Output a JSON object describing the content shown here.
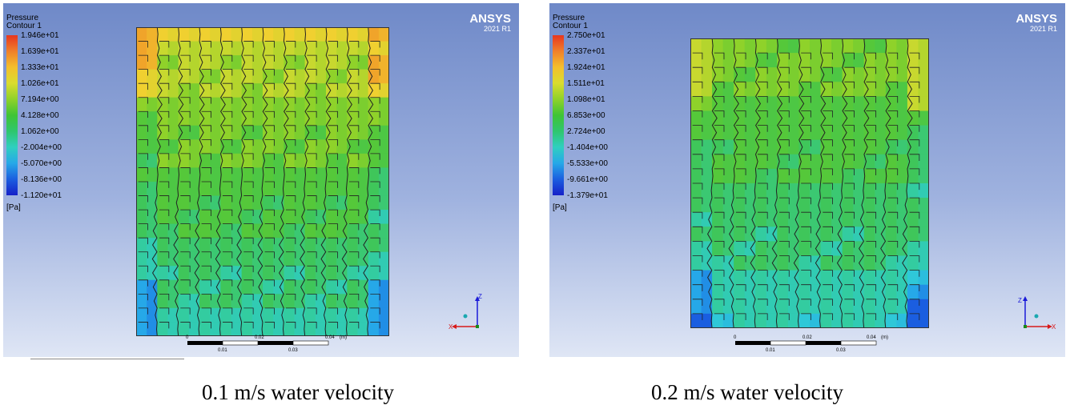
{
  "panels": [
    {
      "legend": {
        "title_line1": "Pressure",
        "title_line2": "Contour 1",
        "ticks": [
          "1.946e+01",
          "1.639e+01",
          "1.333e+01",
          "1.026e+01",
          "7.194e+00",
          "4.128e+00",
          "1.062e+00",
          "-2.004e+00",
          "-5.070e+00",
          "-8.136e+00",
          "-1.120e+01"
        ],
        "unit": "[Pa]"
      },
      "brand": {
        "name": "ANSYS",
        "version": "2021 R1"
      },
      "scale": {
        "top": [
          "0",
          "0.02",
          "0.04",
          "(m)"
        ],
        "bottom": [
          "0.01",
          "0.03"
        ]
      },
      "axes": {
        "vertical": "Z",
        "horizontal": "X"
      },
      "caption": "0.1 m/s water velocity"
    },
    {
      "legend": {
        "title_line1": "Pressure",
        "title_line2": "Contour 1",
        "ticks": [
          "2.750e+01",
          "2.337e+01",
          "1.924e+01",
          "1.511e+01",
          "1.098e+01",
          "6.853e+00",
          "2.724e+00",
          "-1.404e+00",
          "-5.533e+00",
          "-9.661e+00",
          "-1.379e+01"
        ],
        "unit": "[Pa]"
      },
      "brand": {
        "name": "ANSYS",
        "version": "2021 R1"
      },
      "scale": {
        "top": [
          "0",
          "0.02",
          "0.04",
          "(m)"
        ],
        "bottom": [
          "0.01",
          "0.03"
        ]
      },
      "axes": {
        "vertical": "Z",
        "horizontal": "X"
      },
      "caption": "0.2 m/s water velocity"
    }
  ],
  "colormap": [
    "#e8361e",
    "#f0802a",
    "#f4bf2c",
    "#d9dc2f",
    "#8fd22a",
    "#3fc435",
    "#2fc66e",
    "#2fcfc0",
    "#26a8e8",
    "#1b5ee0",
    "#1620c8"
  ]
}
